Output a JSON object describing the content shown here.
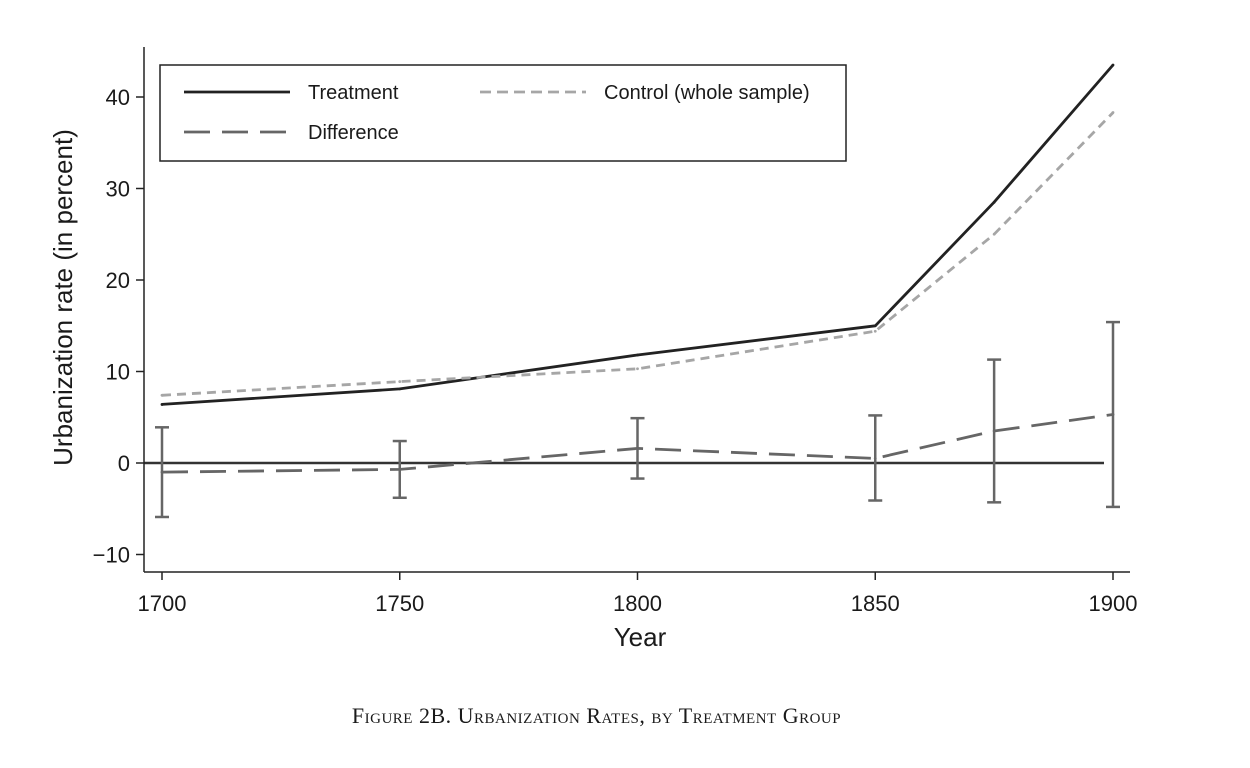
{
  "caption": "Figure 2B. Urbanization Rates, by Treatment Group",
  "chart_data": {
    "type": "line",
    "xlabel": "Year",
    "ylabel": "Urbanization rate (in percent)",
    "xlim": [
      1700,
      1900
    ],
    "ylim": [
      -12,
      45
    ],
    "xticks": [
      1700,
      1750,
      1800,
      1850,
      1900
    ],
    "yticks": [
      -10,
      0,
      10,
      20,
      30,
      40
    ],
    "ytick_labels": [
      "−10",
      "0",
      "10",
      "20",
      "30",
      "40"
    ],
    "legend_position": "top-left",
    "series": [
      {
        "name": "Treatment",
        "style": "solid",
        "color": "#222222",
        "x": [
          1700,
          1750,
          1800,
          1850,
          1875,
          1900
        ],
        "y": [
          6.4,
          8.1,
          11.8,
          15.0,
          28.5,
          43.5
        ]
      },
      {
        "name": "Control (whole sample)",
        "style": "short-dash",
        "color": "#a6a6a6",
        "x": [
          1700,
          1750,
          1800,
          1850,
          1875,
          1900
        ],
        "y": [
          7.4,
          8.9,
          10.3,
          14.4,
          25.0,
          38.3
        ]
      },
      {
        "name": "Difference",
        "style": "long-dash",
        "color": "#666666",
        "x": [
          1700,
          1750,
          1800,
          1850,
          1875,
          1900
        ],
        "y": [
          -1.0,
          -0.7,
          1.6,
          0.5,
          3.5,
          5.3
        ],
        "ci_low": [
          -5.9,
          -3.8,
          -1.7,
          -4.1,
          -4.3,
          -4.8
        ],
        "ci_high": [
          3.9,
          2.4,
          4.9,
          5.2,
          11.3,
          15.4
        ]
      }
    ],
    "reference_line": {
      "y": 0,
      "color": "#333333"
    }
  }
}
